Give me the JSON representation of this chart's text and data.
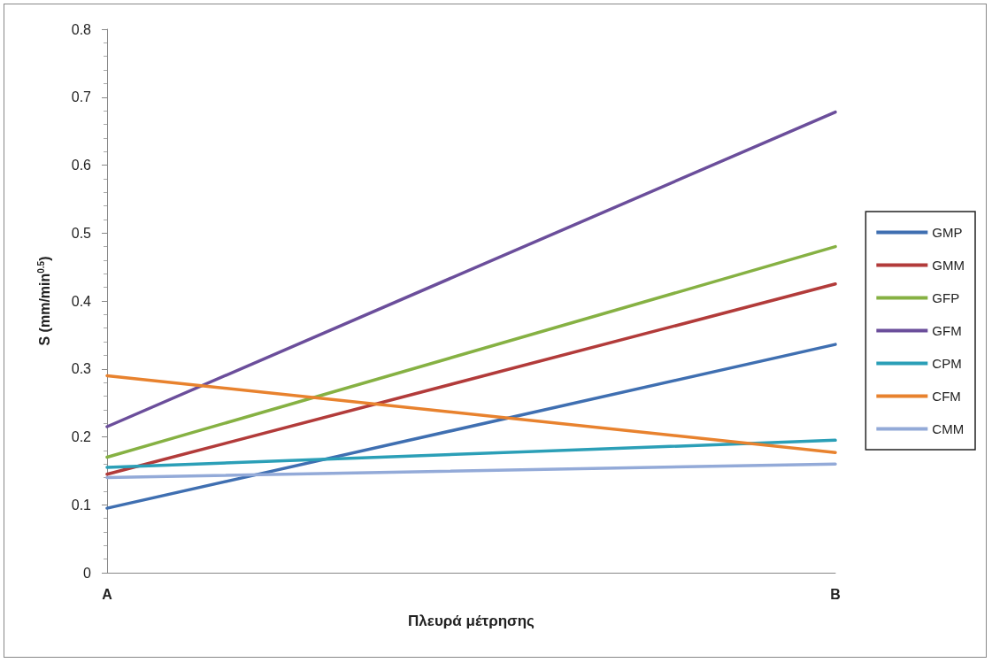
{
  "chart_data": {
    "type": "line",
    "xlabel": "Πλευρά μέτρησης",
    "ylabel": "S (mm/min$^{0.5}$)",
    "categories": [
      "A",
      "B"
    ],
    "series": [
      {
        "name": "GMP",
        "color": "#3f6fb1",
        "values": [
          0.095,
          0.336
        ]
      },
      {
        "name": "GMM",
        "color": "#b23b3a",
        "values": [
          0.145,
          0.425
        ]
      },
      {
        "name": "GFP",
        "color": "#86b143",
        "values": [
          0.17,
          0.48
        ]
      },
      {
        "name": "GFM",
        "color": "#6b4e9b",
        "values": [
          0.215,
          0.678
        ]
      },
      {
        "name": "CPM",
        "color": "#2b9fb7",
        "values": [
          0.155,
          0.195
        ]
      },
      {
        "name": "CFM",
        "color": "#e8822e",
        "values": [
          0.29,
          0.177
        ]
      },
      {
        "name": "CMM",
        "color": "#93aad8",
        "values": [
          0.14,
          0.16
        ]
      }
    ],
    "ylim": [
      0,
      0.8
    ],
    "yticks": [
      0,
      0.1,
      0.2,
      0.3,
      0.4,
      0.5,
      0.6,
      0.7,
      0.8
    ],
    "grid": false,
    "legend": "right",
    "marker": "none",
    "line_style": "solid"
  }
}
